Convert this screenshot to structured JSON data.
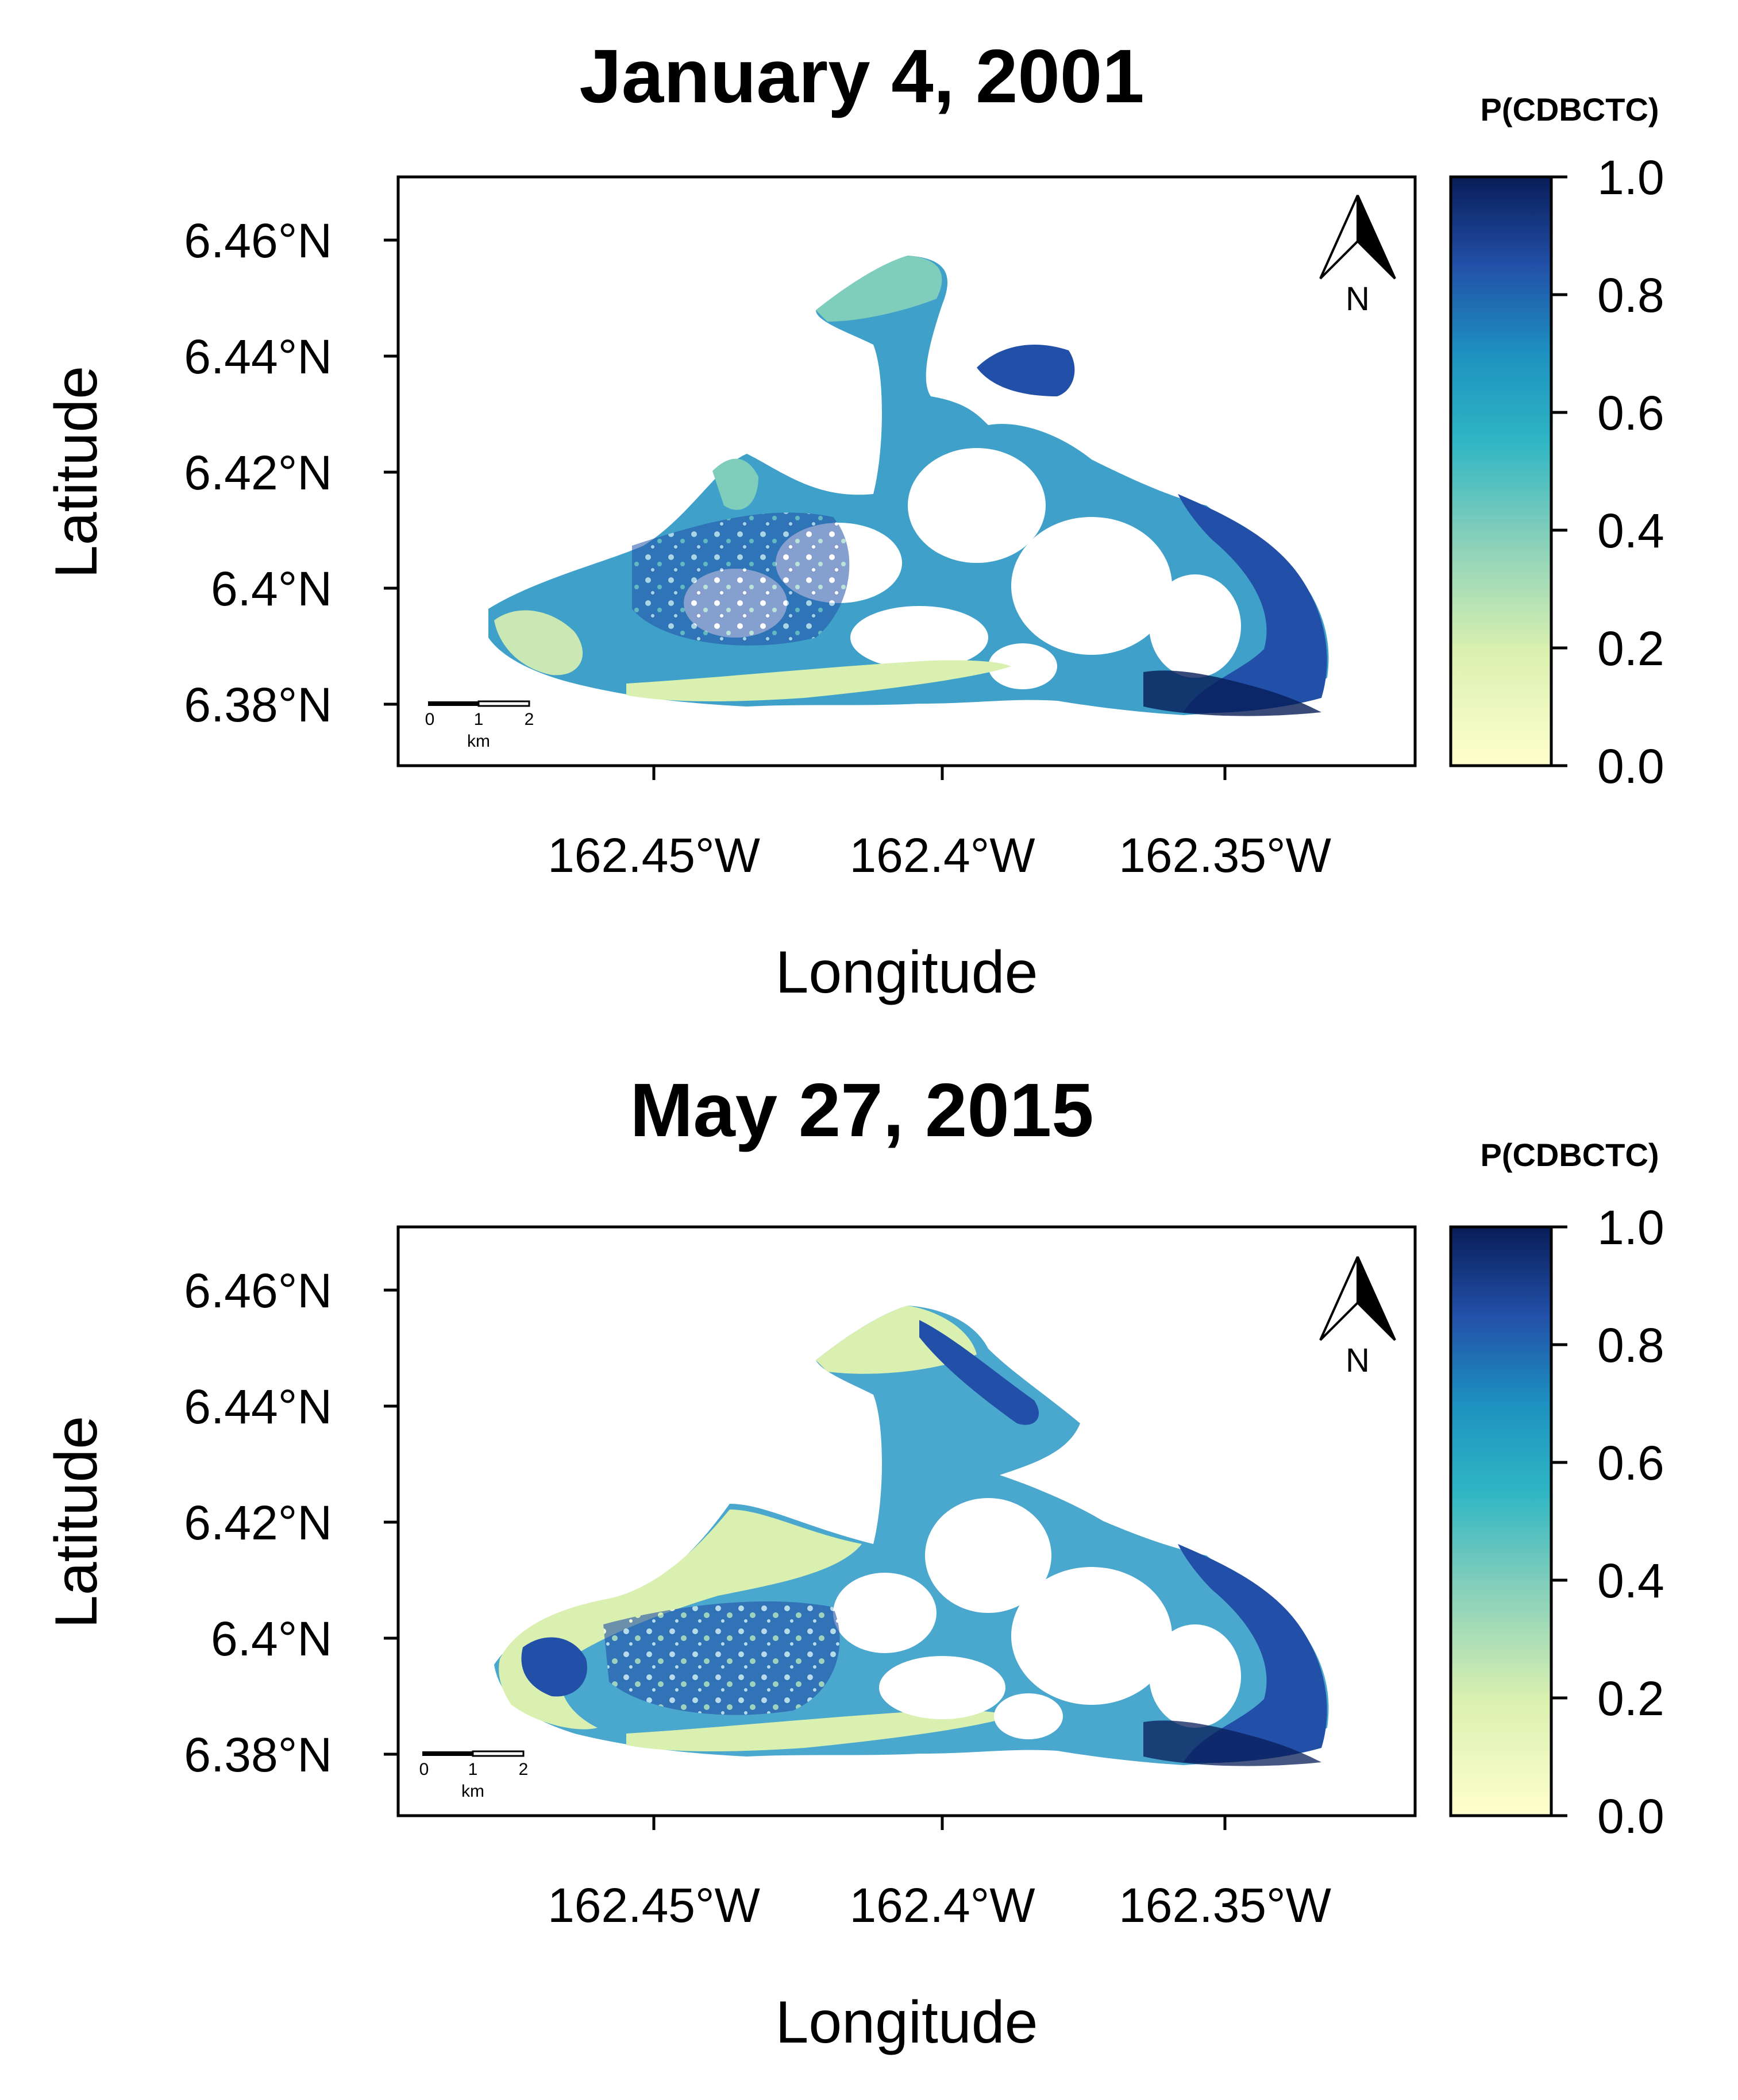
{
  "colorbar": {
    "title": "P(CDBCTC)",
    "ticks": [
      "1.0",
      "0.8",
      "0.6",
      "0.4",
      "0.2",
      "0.0"
    ],
    "range": [
      0,
      1
    ],
    "stops": [
      {
        "value": 0.0,
        "color": "#ffffcc"
      },
      {
        "value": 0.2,
        "color": "#d9f0b0"
      },
      {
        "value": 0.4,
        "color": "#7fcdbb"
      },
      {
        "value": 0.55,
        "color": "#2fb6c4"
      },
      {
        "value": 0.7,
        "color": "#1d91c0"
      },
      {
        "value": 0.85,
        "color": "#2250a8"
      },
      {
        "value": 1.0,
        "color": "#081d58"
      }
    ]
  },
  "axes": {
    "xlabel": "Longitude",
    "ylabel": "Latitude",
    "x_ticks": [
      "162.45°W",
      "162.4°W",
      "162.35°W"
    ],
    "y_ticks": [
      "6.46°N",
      "6.44°N",
      "6.42°N",
      "6.4°N",
      "6.38°N"
    ]
  },
  "north_arrow": {
    "label": "N",
    "icon": "north-arrow-icon"
  },
  "scale_bar": {
    "labels": [
      "0",
      "1",
      "2"
    ],
    "unit": "km"
  },
  "maps": [
    {
      "title": "January 4, 2001"
    },
    {
      "title": "May 27, 2015"
    }
  ]
}
